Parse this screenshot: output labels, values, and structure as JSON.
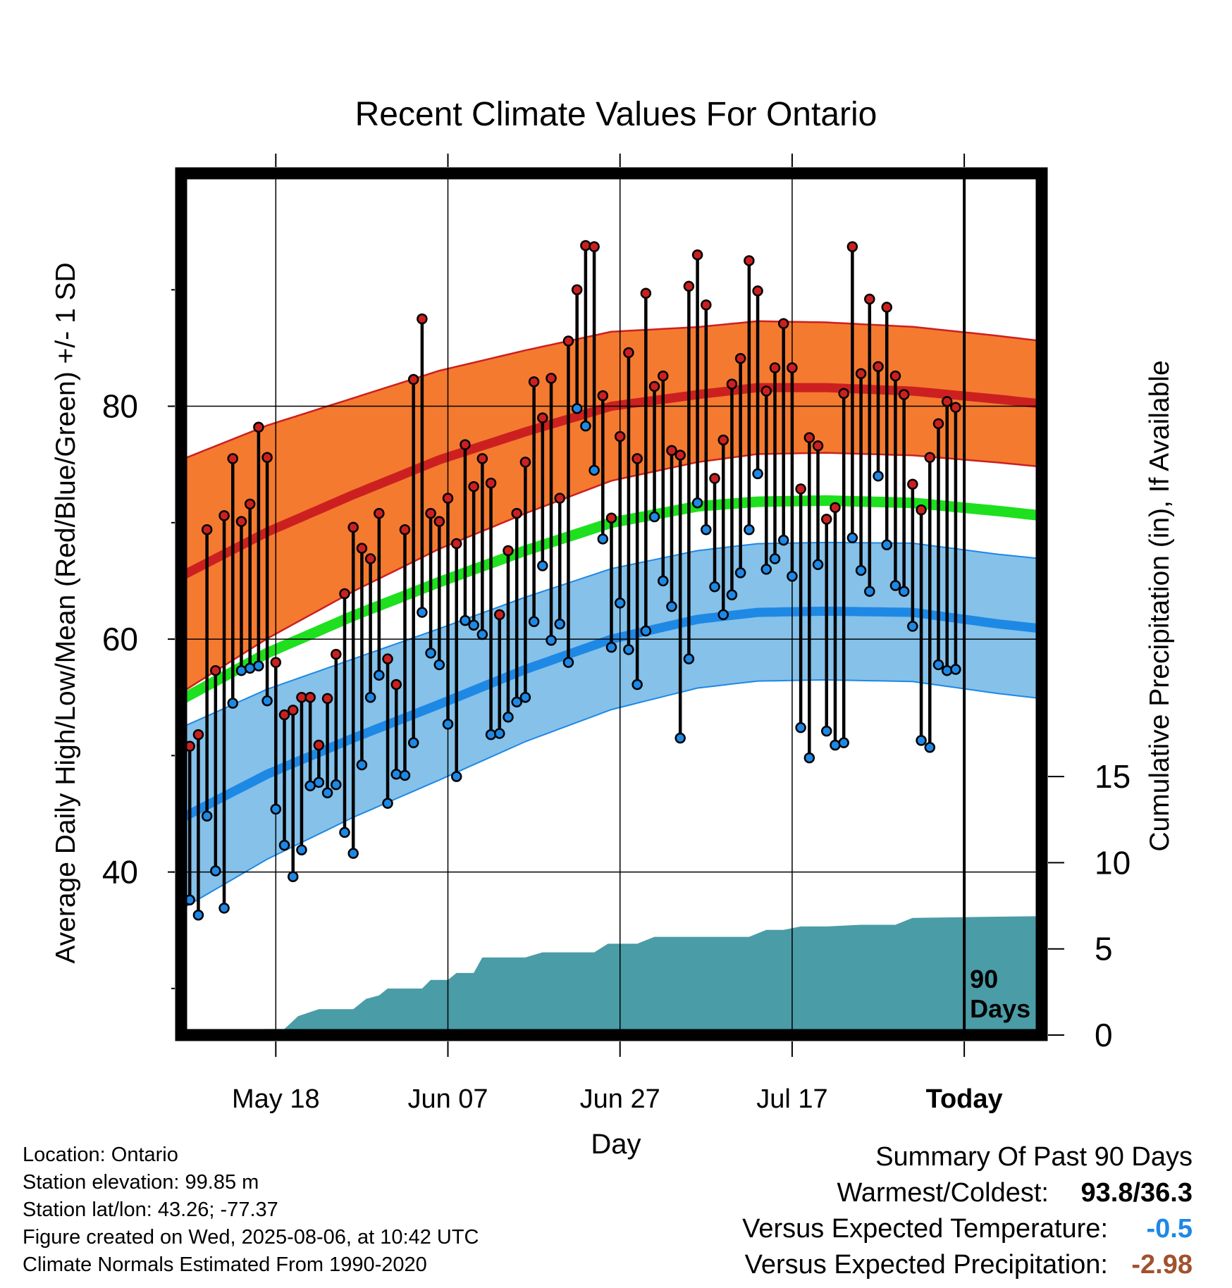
{
  "chart_data": {
    "type": "line",
    "title": "Recent Climate Values For Ontario",
    "xlabel": "Day",
    "ylabel": "Average Daily High/Low/Mean (Red/Blue/Green) +/- 1 SD",
    "y2label": "Cumulative Precipitation (in), If Available",
    "x_ticks": [
      {
        "day": 11,
        "label": "May 18"
      },
      {
        "day": 31,
        "label": "Jun 07"
      },
      {
        "day": 51,
        "label": "Jun 27"
      },
      {
        "day": 71,
        "label": "Jul 17"
      },
      {
        "day": 91,
        "label": "Today"
      }
    ],
    "y_ticks": [
      40,
      60,
      80
    ],
    "y2_ticks": [
      0,
      5,
      10,
      15
    ],
    "xlim": [
      0,
      100
    ],
    "ylim": [
      26,
      100
    ],
    "y2lim": [
      0,
      50
    ],
    "marker_label": "90 Days",
    "normal_high": [
      [
        0,
        65.4
      ],
      [
        10,
        69.2
      ],
      [
        20,
        72.4
      ],
      [
        30,
        75.4
      ],
      [
        40,
        77.8
      ],
      [
        50,
        80.0
      ],
      [
        60,
        81.0
      ],
      [
        67,
        81.6
      ],
      [
        75,
        81.6
      ],
      [
        85,
        81.3
      ],
      [
        95,
        80.6
      ],
      [
        100,
        80.2
      ]
    ],
    "normal_high_sd": [
      [
        0,
        10
      ],
      [
        20,
        8.3
      ],
      [
        40,
        7.0
      ],
      [
        60,
        5.8
      ],
      [
        75,
        5.6
      ],
      [
        100,
        5.4
      ]
    ],
    "normal_low": [
      [
        0,
        44.6
      ],
      [
        10,
        48.4
      ],
      [
        20,
        51.5
      ],
      [
        30,
        54.4
      ],
      [
        40,
        57.4
      ],
      [
        50,
        60.0
      ],
      [
        60,
        61.7
      ],
      [
        67,
        62.3
      ],
      [
        75,
        62.4
      ],
      [
        85,
        62.3
      ],
      [
        95,
        61.3
      ],
      [
        100,
        60.9
      ]
    ],
    "normal_low_sd": [
      [
        0,
        7.8
      ],
      [
        20,
        6.8
      ],
      [
        40,
        6.2
      ],
      [
        60,
        5.9
      ],
      [
        75,
        5.9
      ],
      [
        100,
        6.0
      ]
    ],
    "normal_mean": [
      [
        0,
        54.8
      ],
      [
        10,
        58.8
      ],
      [
        20,
        62.0
      ],
      [
        30,
        64.9
      ],
      [
        40,
        67.6
      ],
      [
        50,
        70.0
      ],
      [
        60,
        71.4
      ],
      [
        67,
        71.8
      ],
      [
        75,
        71.9
      ],
      [
        85,
        71.7
      ],
      [
        95,
        71.0
      ],
      [
        100,
        70.6
      ]
    ],
    "series": [
      {
        "name": "High",
        "color": "#cc2020",
        "values": [
          50.8,
          51.8,
          69.4,
          57.3,
          70.6,
          75.5,
          70.1,
          71.6,
          78.2,
          75.6,
          58.0,
          53.5,
          53.9,
          55.0,
          55.0,
          50.9,
          54.9,
          58.7,
          63.9,
          69.6,
          67.8,
          66.9,
          70.8,
          58.3,
          56.1,
          69.4,
          82.3,
          87.5,
          70.8,
          70.1,
          72.1,
          68.2,
          76.7,
          73.1,
          75.5,
          73.4,
          62.1,
          67.6,
          70.8,
          75.2,
          82.1,
          79.0,
          82.4,
          72.1,
          85.6,
          90.0,
          93.8,
          93.7,
          80.9,
          70.4,
          77.4,
          84.6,
          75.5,
          89.7,
          81.7,
          82.6,
          76.2,
          75.8,
          90.3,
          93.0,
          88.7,
          73.8,
          77.1,
          81.9,
          84.1,
          92.5,
          89.9,
          81.3,
          83.3,
          87.1,
          83.3,
          72.9,
          77.3,
          76.6,
          70.3,
          71.3,
          81.1,
          93.7,
          82.8,
          89.2,
          83.4,
          88.5,
          82.6,
          81.0,
          73.3,
          71.1,
          75.6,
          78.5,
          80.4,
          79.9
        ]
      },
      {
        "name": "Low",
        "color": "#1e88e5",
        "values": [
          37.6,
          36.3,
          44.8,
          40.1,
          36.9,
          54.5,
          57.3,
          57.5,
          57.7,
          54.7,
          45.4,
          42.3,
          39.6,
          41.9,
          47.4,
          47.7,
          46.8,
          47.5,
          43.4,
          41.6,
          49.2,
          55.0,
          56.9,
          45.9,
          48.4,
          48.3,
          51.1,
          62.3,
          58.8,
          57.8,
          52.7,
          48.2,
          61.6,
          61.2,
          60.4,
          51.8,
          51.9,
          53.3,
          54.6,
          55.0,
          61.5,
          66.3,
          59.9,
          61.3,
          58.0,
          79.8,
          78.3,
          74.5,
          68.6,
          59.3,
          63.1,
          59.1,
          56.1,
          60.7,
          70.5,
          65.0,
          62.8,
          51.5,
          58.3,
          71.7,
          69.4,
          64.5,
          62.1,
          63.8,
          65.7,
          69.4,
          74.2,
          66.0,
          66.9,
          68.5,
          65.4,
          52.4,
          49.8,
          66.4,
          52.1,
          50.9,
          51.1,
          68.7,
          65.9,
          64.1,
          74.0,
          68.1,
          64.6,
          64.1,
          61.1,
          51.3,
          50.7,
          57.8,
          57.3,
          57.4
        ]
      },
      {
        "name": "Precipitation",
        "color": "#4a9ca7",
        "values": [
          [
            0,
            0
          ],
          [
            9,
            0
          ],
          [
            9.6,
            0.35
          ],
          [
            12,
            0.35
          ],
          [
            13.6,
            1.1
          ],
          [
            16,
            1.5
          ],
          [
            20,
            1.5
          ],
          [
            21.5,
            2.1
          ],
          [
            23,
            2.3
          ],
          [
            24,
            2.7
          ],
          [
            28,
            2.7
          ],
          [
            29,
            3.2
          ],
          [
            31,
            3.2
          ],
          [
            32,
            3.6
          ],
          [
            34,
            3.6
          ],
          [
            35,
            4.5
          ],
          [
            40,
            4.5
          ],
          [
            42,
            4.8
          ],
          [
            48,
            4.8
          ],
          [
            49.6,
            5.3
          ],
          [
            53,
            5.3
          ],
          [
            55,
            5.7
          ],
          [
            66,
            5.7
          ],
          [
            68,
            6.1
          ],
          [
            70,
            6.1
          ],
          [
            72,
            6.3
          ],
          [
            75,
            6.3
          ],
          [
            79,
            6.4
          ],
          [
            83,
            6.4
          ],
          [
            85,
            6.8
          ],
          [
            100,
            6.9
          ]
        ]
      }
    ]
  },
  "footer": {
    "location": "Location: Ontario",
    "elevation": "Station elevation: 99.85 m",
    "latlon": "Station lat/lon: 43.26; -77.37",
    "created": "Figure created on Wed, 2025-08-06, at 10:42 UTC",
    "normals": "Climate Normals Estimated From 1990-2020"
  },
  "summary": {
    "heading": "Summary Of Past 90 Days",
    "warmest_label": "Warmest/Coldest:",
    "warmest_value": "93.8/36.3",
    "temp_label": "Versus Expected Temperature:",
    "temp_value": "-0.5",
    "temp_color": "#1e88e5",
    "precip_label": "Versus Expected Precipitation:",
    "precip_value": "-2.98",
    "precip_color": "#a0522d"
  }
}
